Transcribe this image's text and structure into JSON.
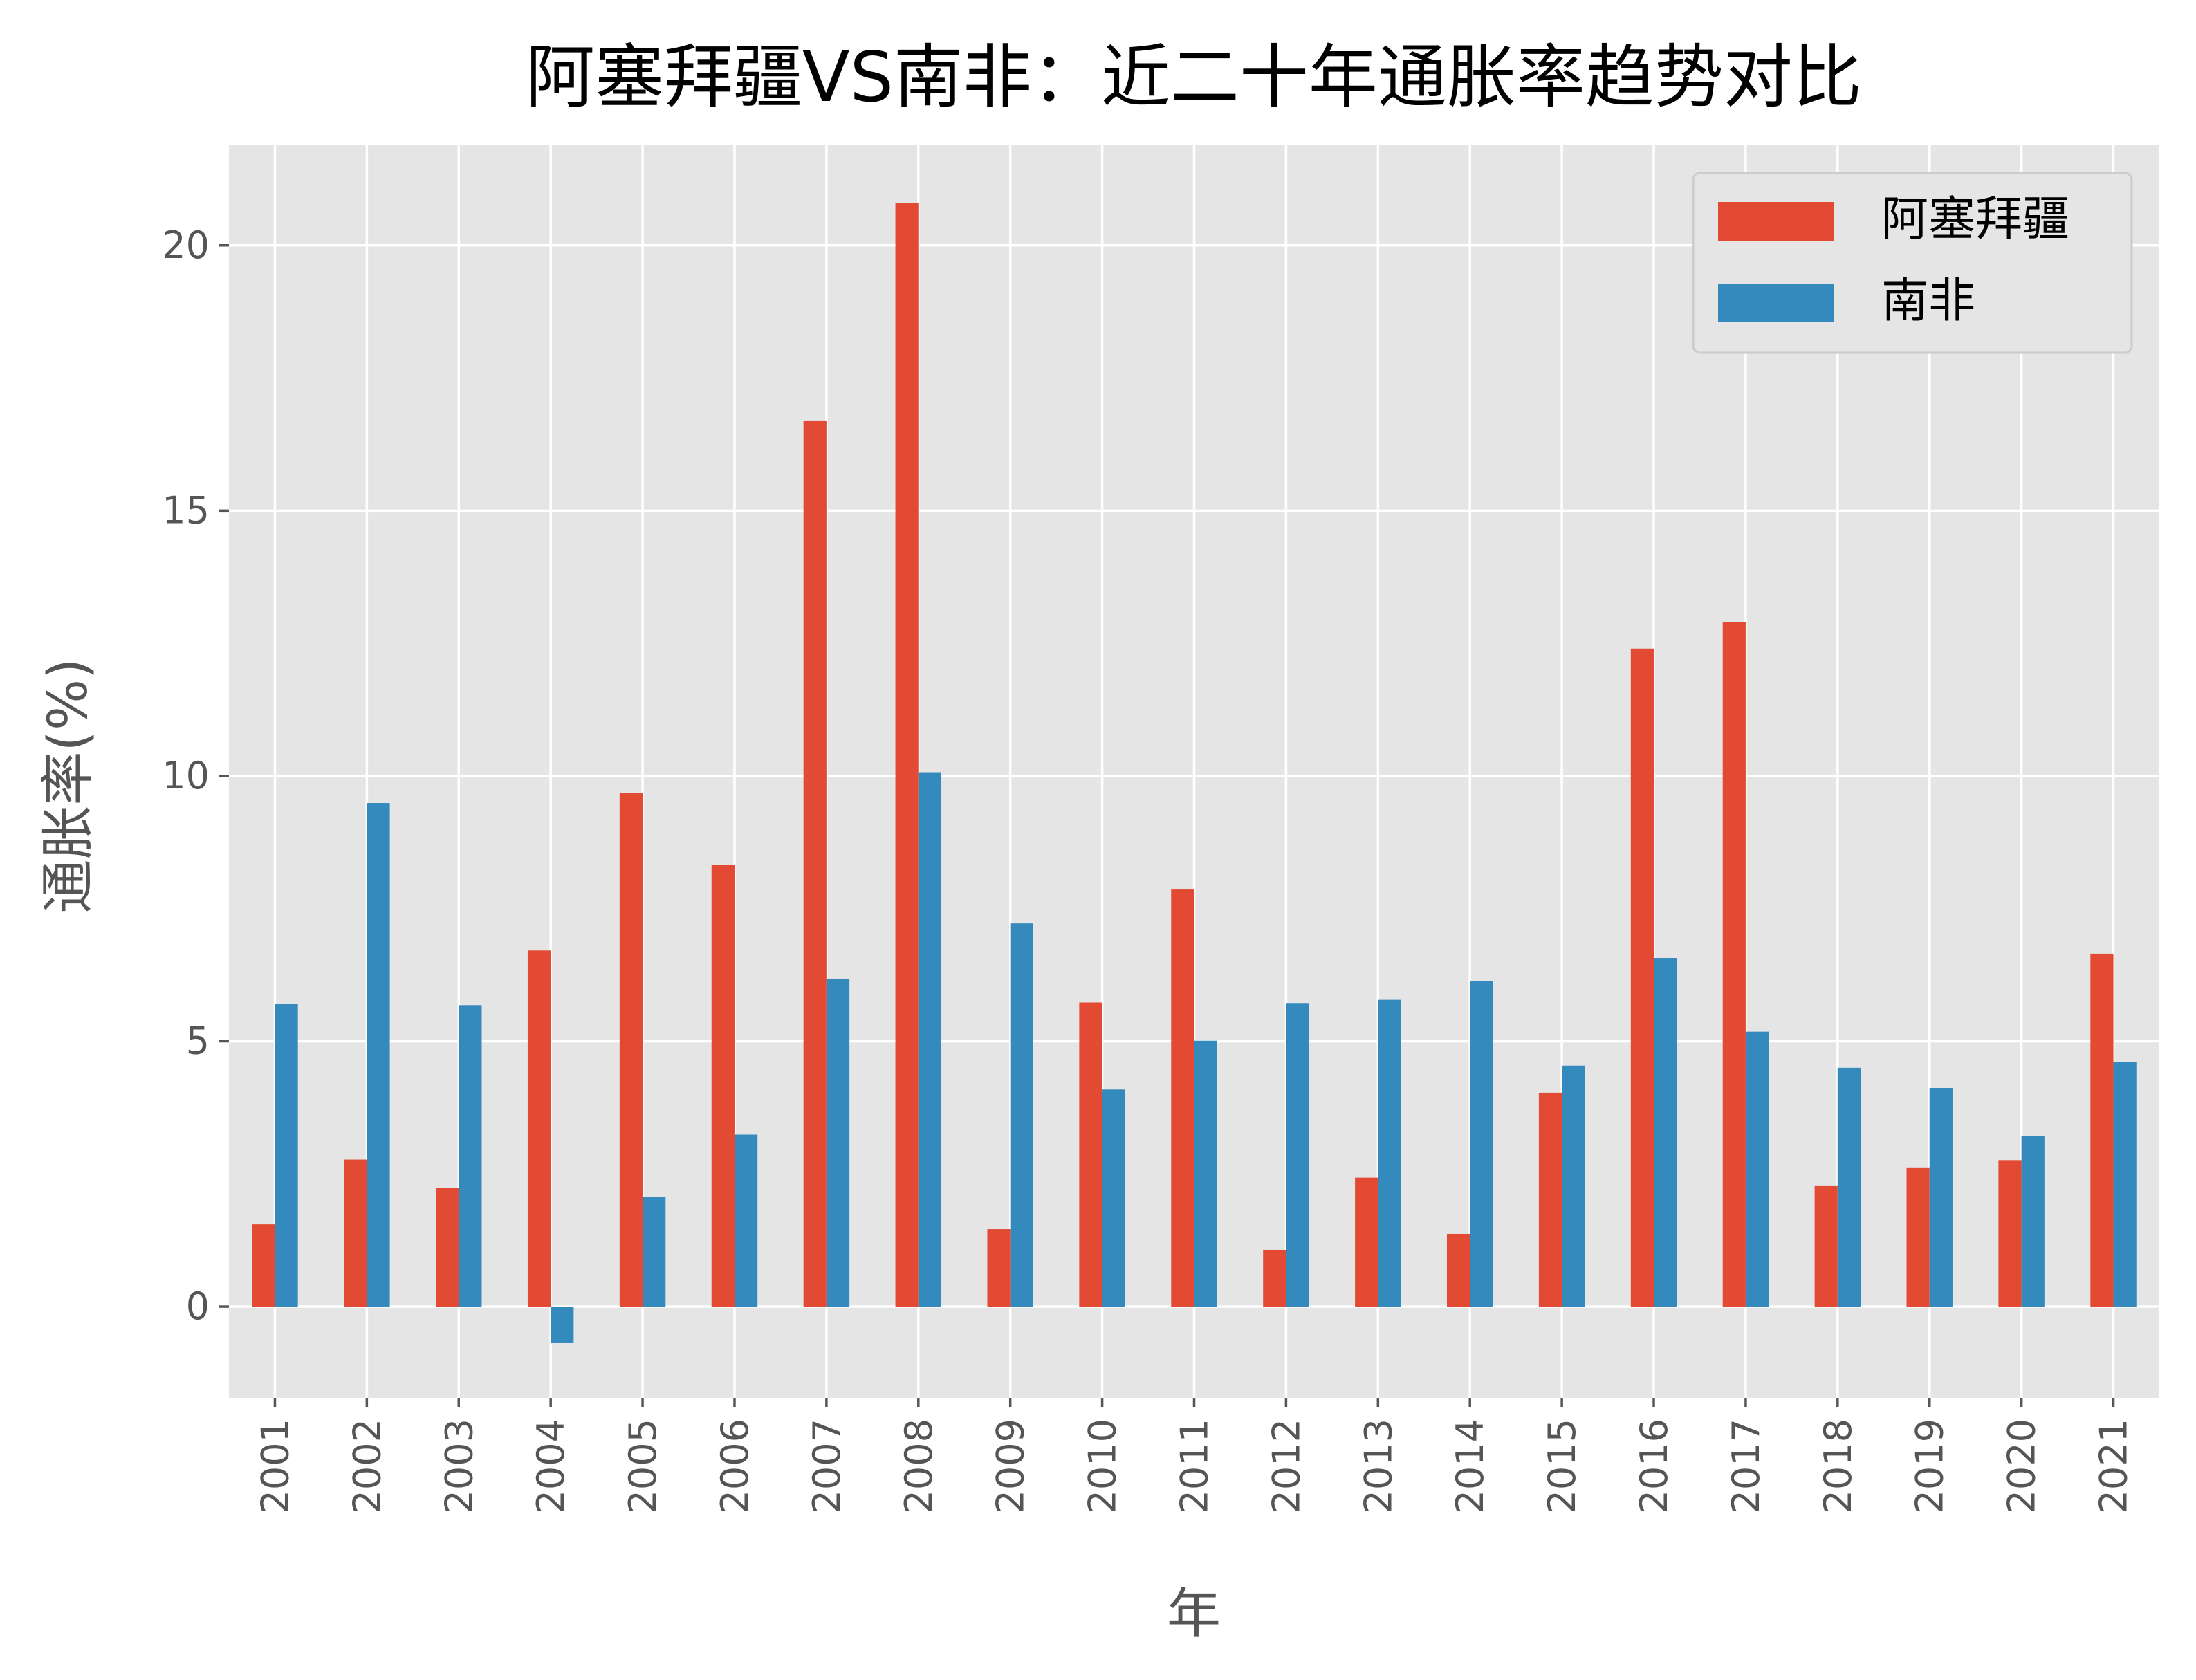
{
  "chart_data": {
    "type": "bar",
    "title": "阿塞拜疆VS南非：近二十年通胀率趋势对比",
    "xlabel": "年",
    "ylabel": "通胀率(%)",
    "ylim": [
      -1.72,
      21.9
    ],
    "yticks": [
      0,
      5,
      10,
      15,
      20
    ],
    "grid": true,
    "legend_placement": "top-right",
    "categories": [
      "2001",
      "2002",
      "2003",
      "2004",
      "2005",
      "2006",
      "2007",
      "2008",
      "2009",
      "2010",
      "2011",
      "2012",
      "2013",
      "2014",
      "2015",
      "2016",
      "2017",
      "2018",
      "2019",
      "2020",
      "2021"
    ],
    "series": [
      {
        "name": "阿塞拜疆",
        "color": "#E24A33",
        "values": [
          1.55,
          2.77,
          2.24,
          6.71,
          9.68,
          8.33,
          16.7,
          20.8,
          1.46,
          5.73,
          7.86,
          1.07,
          2.43,
          1.37,
          4.03,
          12.4,
          12.9,
          2.27,
          2.61,
          2.76,
          6.65
        ]
      },
      {
        "name": "南非",
        "color": "#348ABD",
        "values": [
          5.7,
          9.49,
          5.68,
          -0.69,
          2.06,
          3.24,
          6.18,
          10.07,
          7.22,
          4.09,
          5.01,
          5.72,
          5.78,
          6.13,
          4.54,
          6.57,
          5.18,
          4.5,
          4.12,
          3.21,
          4.61
        ]
      }
    ],
    "background": "#E5E5E5"
  }
}
